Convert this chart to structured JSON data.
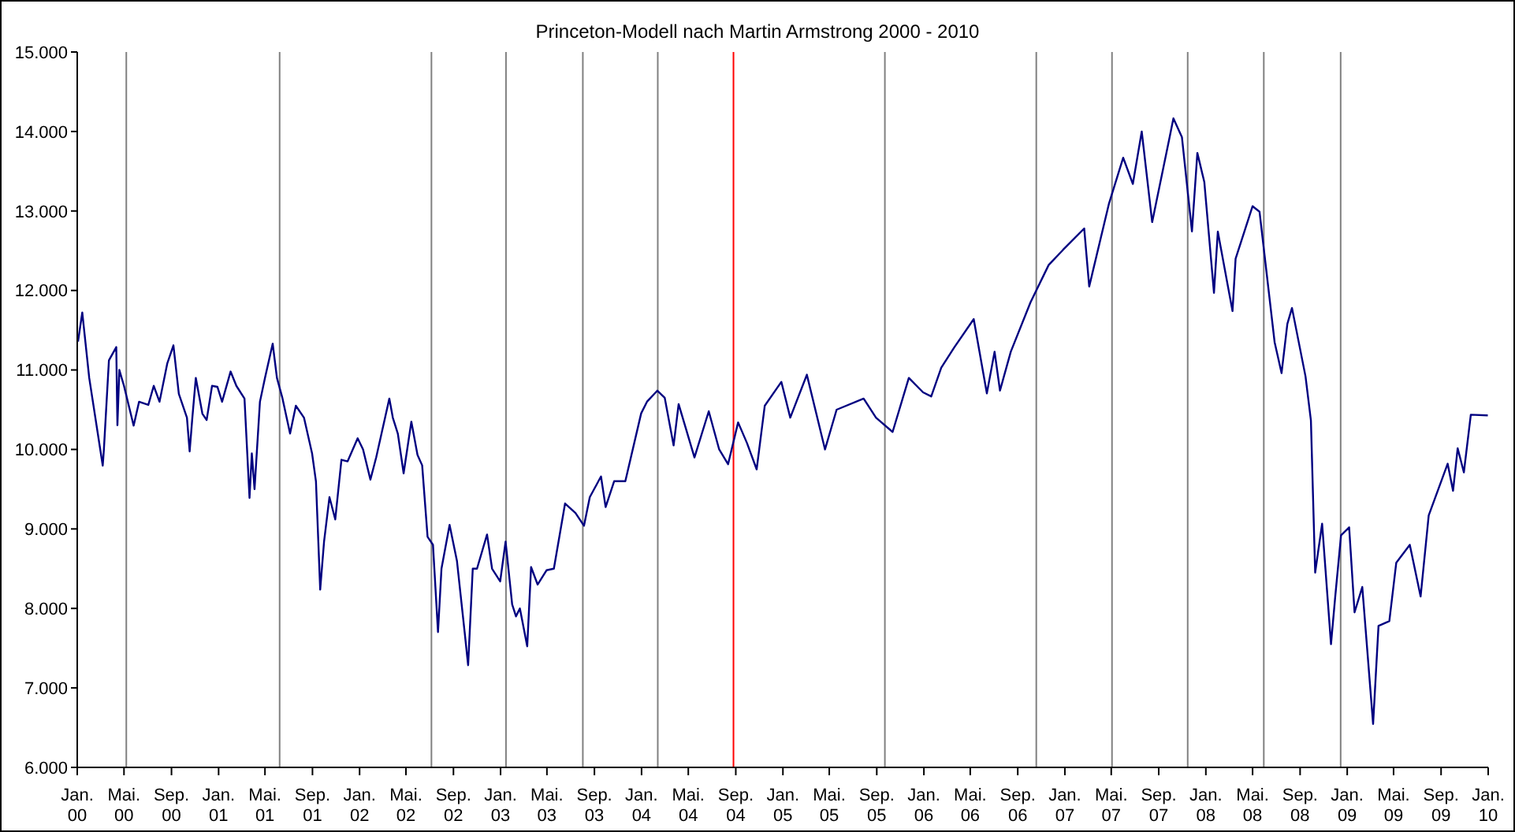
{
  "chart_data": {
    "type": "line",
    "title": "Princeton-Modell nach Martin Armstrong 2000 - 2010",
    "marker": "none",
    "line_style": "solid",
    "xlim": [
      "2000-01-01",
      "2010-01-01"
    ],
    "xticks": [
      {
        "value": "2000-01-01",
        "label": "Jan. 00"
      },
      {
        "value": "2000-05-01",
        "label": "Mai. 00"
      },
      {
        "value": "2000-09-01",
        "label": "Sep. 00"
      },
      {
        "value": "2001-01-01",
        "label": "Jan. 01"
      },
      {
        "value": "2001-05-01",
        "label": "Mai. 01"
      },
      {
        "value": "2001-09-01",
        "label": "Sep. 01"
      },
      {
        "value": "2002-01-01",
        "label": "Jan. 02"
      },
      {
        "value": "2002-05-01",
        "label": "Mai. 02"
      },
      {
        "value": "2002-09-01",
        "label": "Sep. 02"
      },
      {
        "value": "2003-01-01",
        "label": "Jan. 03"
      },
      {
        "value": "2003-05-01",
        "label": "Mai. 03"
      },
      {
        "value": "2003-09-01",
        "label": "Sep. 03"
      },
      {
        "value": "2004-01-01",
        "label": "Jan. 04"
      },
      {
        "value": "2004-05-01",
        "label": "Mai. 04"
      },
      {
        "value": "2004-09-01",
        "label": "Sep. 04"
      },
      {
        "value": "2005-01-01",
        "label": "Jan. 05"
      },
      {
        "value": "2005-05-01",
        "label": "Mai. 05"
      },
      {
        "value": "2005-09-01",
        "label": "Sep. 05"
      },
      {
        "value": "2006-01-01",
        "label": "Jan. 06"
      },
      {
        "value": "2006-05-01",
        "label": "Mai. 06"
      },
      {
        "value": "2006-09-01",
        "label": "Sep. 06"
      },
      {
        "value": "2007-01-01",
        "label": "Jan. 07"
      },
      {
        "value": "2007-05-01",
        "label": "Mai. 07"
      },
      {
        "value": "2007-09-01",
        "label": "Sep. 07"
      },
      {
        "value": "2008-01-01",
        "label": "Jan. 08"
      },
      {
        "value": "2008-05-01",
        "label": "Mai. 08"
      },
      {
        "value": "2008-09-01",
        "label": "Sep. 08"
      },
      {
        "value": "2009-01-01",
        "label": "Jan. 09"
      },
      {
        "value": "2009-05-01",
        "label": "Mai. 09"
      },
      {
        "value": "2009-09-01",
        "label": "Sep. 09"
      },
      {
        "value": "2010-01-01",
        "label": "Jan. 10"
      }
    ],
    "ylim": [
      6000,
      15000
    ],
    "yticks": [
      {
        "value": 6000,
        "label": "6.000"
      },
      {
        "value": 7000,
        "label": "7.000"
      },
      {
        "value": 8000,
        "label": "8.000"
      },
      {
        "value": 9000,
        "label": "9.000"
      },
      {
        "value": 10000,
        "label": "10.000"
      },
      {
        "value": 11000,
        "label": "11.000"
      },
      {
        "value": 12000,
        "label": "12.000"
      },
      {
        "value": 13000,
        "label": "13.000"
      },
      {
        "value": 14000,
        "label": "14.000"
      },
      {
        "value": 15000,
        "label": "15.000"
      }
    ],
    "ref_lines": [
      {
        "axis": "x",
        "value": "2000-05-07",
        "color": "#808080"
      },
      {
        "axis": "x",
        "value": "2001-06-08",
        "color": "#808080"
      },
      {
        "axis": "x",
        "value": "2002-07-06",
        "color": "#808080"
      },
      {
        "axis": "x",
        "value": "2003-01-15",
        "color": "#808080"
      },
      {
        "axis": "x",
        "value": "2003-08-02",
        "color": "#808080"
      },
      {
        "axis": "x",
        "value": "2004-02-12",
        "color": "#808080"
      },
      {
        "axis": "x",
        "value": "2004-08-26",
        "color": "#ff0000"
      },
      {
        "axis": "x",
        "value": "2005-09-22",
        "color": "#808080"
      },
      {
        "axis": "x",
        "value": "2006-10-19",
        "color": "#808080"
      },
      {
        "axis": "x",
        "value": "2007-05-03",
        "color": "#808080"
      },
      {
        "axis": "x",
        "value": "2007-11-15",
        "color": "#808080"
      },
      {
        "axis": "x",
        "value": "2008-05-30",
        "color": "#808080"
      },
      {
        "axis": "x",
        "value": "2008-12-15",
        "color": "#808080"
      }
    ],
    "series": [
      {
        "color": "#000080",
        "x": [
          "2000-01-03",
          "2000-01-14",
          "2000-02-01",
          "2000-03-07",
          "2000-03-10",
          "2000-03-23",
          "2000-04-11",
          "2000-04-14",
          "2000-04-19",
          "2000-05-01",
          "2000-05-26",
          "2000-06-09",
          "2000-07-03",
          "2000-07-17",
          "2000-08-01",
          "2000-08-21",
          "2000-09-06",
          "2000-09-20",
          "2000-10-11",
          "2000-10-18",
          "2000-10-25",
          "2000-11-03",
          "2000-11-20",
          "2000-12-01",
          "2000-12-15",
          "2000-12-29",
          "2001-01-10",
          "2001-02-01",
          "2001-02-16",
          "2001-03-09",
          "2001-03-22",
          "2001-03-28",
          "2001-04-04",
          "2001-04-18",
          "2001-05-01",
          "2001-05-21",
          "2001-06-01",
          "2001-06-15",
          "2001-07-05",
          "2001-07-20",
          "2001-08-10",
          "2001-08-31",
          "2001-09-10",
          "2001-09-21",
          "2001-10-01",
          "2001-10-15",
          "2001-10-30",
          "2001-11-15",
          "2001-12-01",
          "2001-12-27",
          "2002-01-10",
          "2002-01-29",
          "2002-02-13",
          "2002-03-19",
          "2002-03-28",
          "2002-04-10",
          "2002-04-25",
          "2002-05-15",
          "2002-05-31",
          "2002-06-12",
          "2002-06-26",
          "2002-07-10",
          "2002-07-23",
          "2002-08-01",
          "2002-08-22",
          "2002-09-10",
          "2002-09-30",
          "2002-10-09",
          "2002-10-21",
          "2002-11-01",
          "2002-11-27",
          "2002-12-10",
          "2002-12-31",
          "2003-01-14",
          "2003-01-31",
          "2003-02-10",
          "2003-02-20",
          "2003-03-11",
          "2003-03-21",
          "2003-04-07",
          "2003-04-30",
          "2003-05-19",
          "2003-06-17",
          "2003-07-14",
          "2003-08-05",
          "2003-08-20",
          "2003-09-18",
          "2003-09-30",
          "2003-10-22",
          "2003-11-20",
          "2003-12-31",
          "2004-01-15",
          "2004-02-11",
          "2004-03-01",
          "2004-03-24",
          "2004-04-06",
          "2004-05-17",
          "2004-06-23",
          "2004-07-20",
          "2004-08-12",
          "2004-09-07",
          "2004-09-30",
          "2004-10-25",
          "2004-11-15",
          "2004-12-28",
          "2005-01-20",
          "2005-03-04",
          "2005-04-20",
          "2005-05-20",
          "2005-07-29",
          "2005-08-30",
          "2005-10-12",
          "2005-11-23",
          "2005-12-30",
          "2006-01-20",
          "2006-02-15",
          "2006-03-20",
          "2006-05-10",
          "2006-06-13",
          "2006-07-03",
          "2006-07-17",
          "2006-08-14",
          "2006-10-04",
          "2006-11-20",
          "2006-12-27",
          "2007-02-20",
          "2007-03-05",
          "2007-04-25",
          "2007-06-01",
          "2007-06-26",
          "2007-07-19",
          "2007-08-15",
          "2007-09-28",
          "2007-10-09",
          "2007-10-31",
          "2007-11-26",
          "2007-12-10",
          "2007-12-28",
          "2008-01-22",
          "2008-02-01",
          "2008-03-10",
          "2008-03-18",
          "2008-05-01",
          "2008-05-19",
          "2008-06-27",
          "2008-07-15",
          "2008-07-30",
          "2008-08-11",
          "2008-09-15",
          "2008-09-29",
          "2008-10-10",
          "2008-10-28",
          "2008-11-20",
          "2008-12-01",
          "2008-12-16",
          "2009-01-06",
          "2009-01-20",
          "2009-02-09",
          "2009-03-09",
          "2009-03-23",
          "2009-04-20",
          "2009-05-08",
          "2009-06-12",
          "2009-07-10",
          "2009-07-31",
          "2009-09-18",
          "2009-10-02",
          "2009-10-14",
          "2009-10-30",
          "2009-11-17",
          "2009-12-31"
        ],
        "values": [
          11357,
          11723,
          10900,
          9796,
          10000,
          11120,
          11287,
          10305,
          11000,
          10800,
          10300,
          10600,
          10560,
          10800,
          10600,
          11080,
          11310,
          10700,
          10400,
          9975,
          10400,
          10900,
          10450,
          10370,
          10800,
          10787,
          10600,
          10980,
          10800,
          10640,
          9390,
          9950,
          9500,
          10600,
          10900,
          11330,
          10900,
          10650,
          10200,
          10550,
          10400,
          9950,
          9600,
          8236,
          8840,
          9400,
          9120,
          9870,
          9850,
          10140,
          10000,
          9620,
          9900,
          10640,
          10400,
          10200,
          9700,
          10350,
          9930,
          9800,
          8900,
          8800,
          7702,
          8500,
          9050,
          8600,
          7700,
          7286,
          8500,
          8500,
          8930,
          8500,
          8340,
          8840,
          8050,
          7900,
          8000,
          7524,
          8520,
          8300,
          8480,
          8500,
          9320,
          9200,
          9040,
          9400,
          9660,
          9275,
          9600,
          9600,
          10454,
          10600,
          10740,
          10650,
          10050,
          10570,
          9900,
          10480,
          10000,
          9814,
          10340,
          10080,
          9749,
          10550,
          10850,
          10400,
          10940,
          10000,
          10500,
          10640,
          10400,
          10220,
          10900,
          10718,
          10667,
          11030,
          11280,
          11640,
          10706,
          11230,
          10740,
          11230,
          11850,
          12320,
          12510,
          12780,
          12050,
          13090,
          13670,
          13340,
          14000,
          12860,
          13900,
          14165,
          13930,
          12743,
          13730,
          13365,
          11970,
          12740,
          11740,
          12400,
          13060,
          12990,
          11350,
          10960,
          11580,
          11780,
          10920,
          10365,
          8450,
          9065,
          7550,
          8150,
          8920,
          9020,
          7950,
          8270,
          6547,
          7780,
          7840,
          8575,
          8800,
          8150,
          9170,
          9820,
          9480,
          10015,
          9712,
          10437,
          10428
        ]
      }
    ]
  }
}
